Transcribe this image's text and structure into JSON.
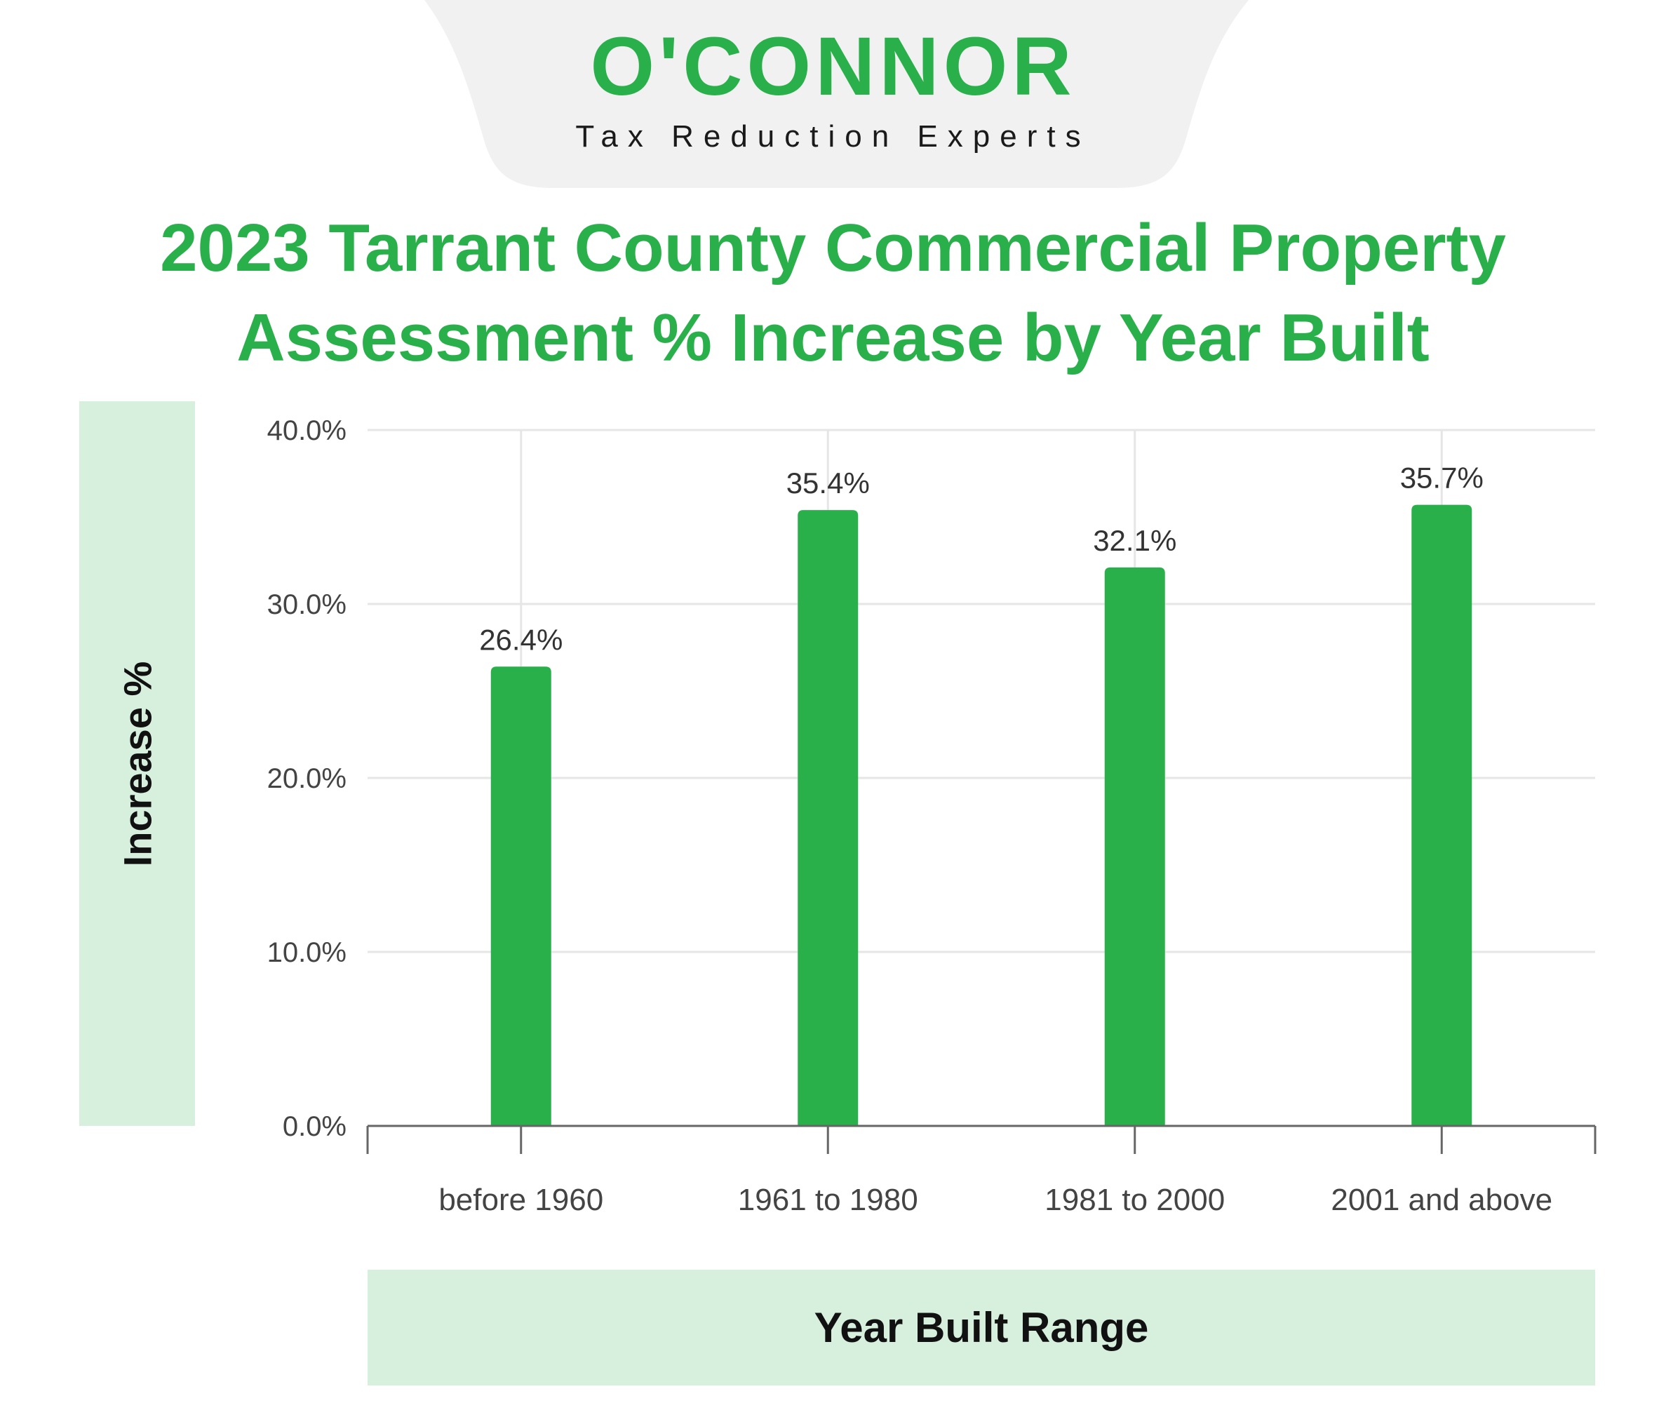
{
  "logo": {
    "wordmark": "O'CONNOR",
    "tagline": "Tax Reduction Experts"
  },
  "colors": {
    "brand_green": "#2ab04b",
    "panel_green": "#d6f0dd",
    "header_gray": "#f1f1f1"
  },
  "chart_data": {
    "type": "bar",
    "title_lines": [
      "2023 Tarrant County Commercial Property",
      "Assessment % Increase by Year Built"
    ],
    "xlabel": "Year Built Range",
    "ylabel": "Increase %",
    "categories": [
      "before 1960",
      "1961 to 1980",
      "1981 to 2000",
      "2001 and above"
    ],
    "values": [
      26.4,
      35.4,
      32.1,
      35.7
    ],
    "data_labels": [
      "26.4%",
      "35.4%",
      "32.1%",
      "35.7%"
    ],
    "ylim": [
      0,
      40
    ],
    "yticks": [
      0,
      10,
      20,
      30,
      40
    ],
    "ytick_labels": [
      "0.0%",
      "10.0%",
      "20.0%",
      "30.0%",
      "40.0%"
    ],
    "grid": true,
    "bar_color": "#2ab04b"
  }
}
